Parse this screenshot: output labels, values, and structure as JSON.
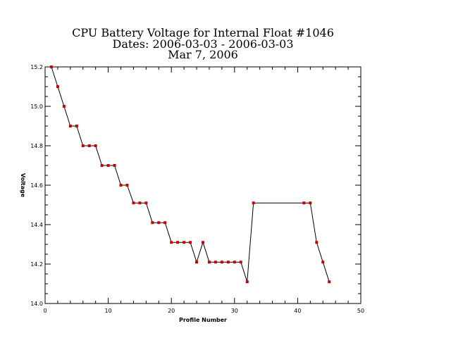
{
  "chart_data": {
    "type": "line",
    "title_lines": [
      "CPU Battery Voltage for Internal Float #1046",
      "Dates:  2006-03-03 -  2006-03-03",
      "Mar  7, 2006"
    ],
    "xlabel": "Profile Number",
    "ylabel": "Voltage",
    "xlim": [
      0,
      50
    ],
    "ylim": [
      14.0,
      15.2
    ],
    "xticks": [
      0,
      10,
      20,
      30,
      40,
      50
    ],
    "yticks": [
      14.0,
      14.2,
      14.4,
      14.6,
      14.8,
      15.0,
      15.2
    ],
    "xtick_labels": [
      "0",
      "10",
      "20",
      "30",
      "40",
      "50"
    ],
    "ytick_labels": [
      "14.0",
      "14.2",
      "14.4",
      "14.6",
      "14.8",
      "15.0",
      "15.2"
    ],
    "grid": false,
    "line_color": "#000000",
    "marker_color": "#cc0000",
    "x": [
      1,
      2,
      3,
      4,
      5,
      6,
      7,
      8,
      9,
      10,
      11,
      12,
      13,
      14,
      15,
      16,
      17,
      18,
      19,
      20,
      21,
      22,
      23,
      24,
      25,
      26,
      27,
      28,
      29,
      30,
      31,
      32,
      33,
      41,
      42,
      43,
      44,
      45
    ],
    "y": [
      15.2,
      15.1,
      15.0,
      14.9,
      14.9,
      14.8,
      14.8,
      14.8,
      14.7,
      14.7,
      14.7,
      14.6,
      14.6,
      14.51,
      14.51,
      14.51,
      14.41,
      14.41,
      14.41,
      14.31,
      14.31,
      14.31,
      14.31,
      14.21,
      14.31,
      14.21,
      14.21,
      14.21,
      14.21,
      14.21,
      14.21,
      14.11,
      14.51,
      14.51,
      14.51,
      14.31,
      14.21,
      14.11
    ]
  }
}
